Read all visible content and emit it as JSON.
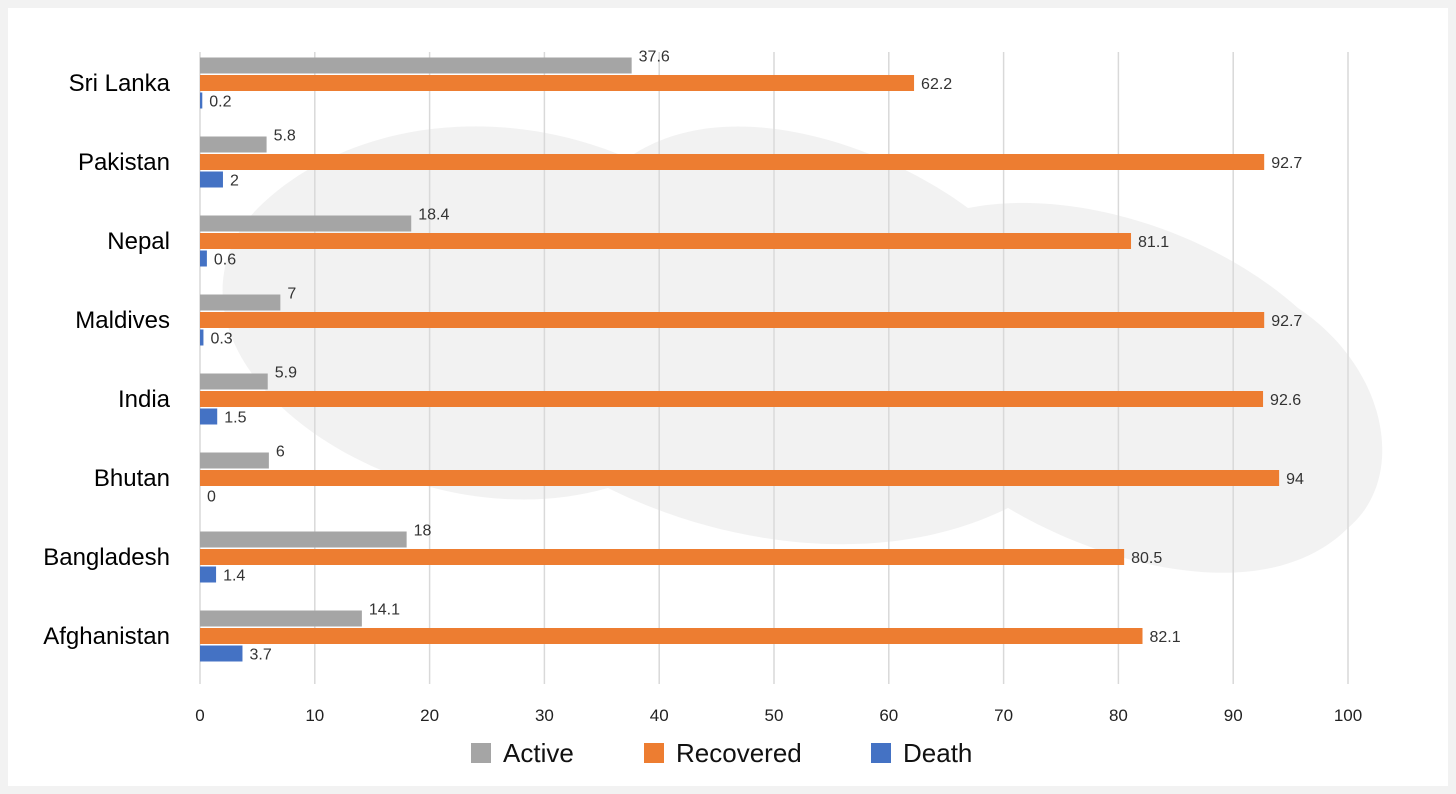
{
  "chart_data": {
    "type": "bar",
    "orientation": "horizontal",
    "categories": [
      "Sri Lanka",
      "Pakistan",
      "Nepal",
      "Maldives",
      "India",
      "Bhutan",
      "Bangladesh",
      "Afghanistan"
    ],
    "series": [
      {
        "name": "Active",
        "color": "#a5a5a5",
        "values": [
          37.6,
          5.8,
          18.4,
          7,
          5.9,
          6,
          18,
          14.1
        ]
      },
      {
        "name": "Recovered",
        "color": "#ed7d31",
        "values": [
          62.2,
          92.7,
          81.1,
          92.7,
          92.6,
          94,
          80.5,
          82.1
        ]
      },
      {
        "name": "Death",
        "color": "#4472c4",
        "values": [
          0.2,
          2,
          0.6,
          0.3,
          1.5,
          0,
          1.4,
          3.7
        ]
      }
    ],
    "xlim": [
      0,
      100
    ],
    "xticks": [
      0,
      10,
      20,
      30,
      40,
      50,
      60,
      70,
      80,
      90,
      100
    ],
    "grid": true,
    "legend": "bottom",
    "data_labels": true,
    "gridline_color": "#d9d9d9"
  }
}
